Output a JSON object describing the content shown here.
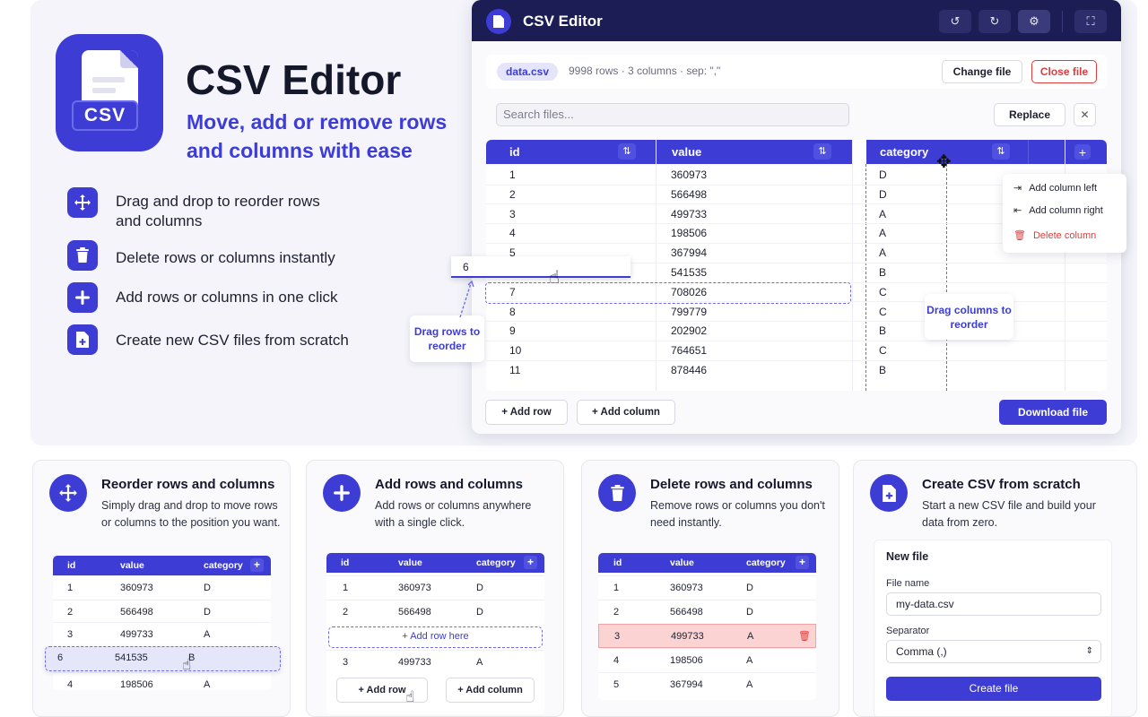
{
  "hero": {
    "app_icon_label": "CSV",
    "title": "CSV Editor",
    "subtitle": "Move, add or remove rows and columns with ease",
    "features": [
      {
        "icon": "move-icon",
        "text": "Drag and drop to reorder rows and columns"
      },
      {
        "icon": "trash-icon",
        "text": "Delete rows or columns instantly"
      },
      {
        "icon": "plus-icon",
        "text": "Add rows or columns in one click"
      },
      {
        "icon": "file-plus-icon",
        "text": "Create new CSV files from scratch"
      }
    ]
  },
  "window": {
    "title": "CSV Editor",
    "toolbar_icons": [
      "undo-icon",
      "redo-icon",
      "gear-icon",
      "fullscreen-icon"
    ],
    "file": {
      "name": "data.csv",
      "info": "9998 rows · 3 columns · sep: \",\"",
      "change_label": "Change file",
      "close_label": "Close file"
    },
    "search": {
      "placeholder": "Search files...",
      "replace_label": "Replace",
      "clear_icon": "close-icon"
    },
    "columns": [
      "id",
      "value",
      "category"
    ],
    "rows": [
      [
        "1",
        "360973",
        "D"
      ],
      [
        "2",
        "566498",
        "D"
      ],
      [
        "3",
        "499733",
        "A"
      ],
      [
        "4",
        "198506",
        "A"
      ],
      [
        "5",
        "367994",
        "A"
      ],
      [
        "",
        "541535",
        "B"
      ],
      [
        "7",
        "708026",
        "C"
      ],
      [
        "8",
        "799779",
        "C"
      ],
      [
        "9",
        "202902",
        "B"
      ],
      [
        "10",
        "764651",
        "C"
      ],
      [
        "11",
        "878446",
        "B"
      ]
    ],
    "dragged_row": "6",
    "context_menu": [
      "Add column left",
      "Add column right",
      "Delete column"
    ],
    "tip_rows": "Drag rows to reorder",
    "tip_columns": "Drag columns to reorder",
    "add_row_label": "+ Add row",
    "add_column_label": "+ Add column",
    "download_label": "Download file",
    "colors": {
      "accent": "#3d3dd6",
      "titlebar": "#1c1d55",
      "danger": "#e03b3b"
    }
  },
  "cards": [
    {
      "icon": "move-icon",
      "title": "Reorder rows and columns",
      "desc": "Simply drag and drop to move rows or columns to the position you want.",
      "columns": [
        "id",
        "value",
        "category"
      ],
      "rows": [
        [
          "1",
          "360973",
          "D"
        ],
        [
          "2",
          "566498",
          "D"
        ],
        [
          "3",
          "499733",
          "A"
        ],
        [
          "6",
          "541535",
          "B"
        ],
        [
          "4",
          "198506",
          "A"
        ]
      ]
    },
    {
      "icon": "plus-icon",
      "title": "Add rows and columns",
      "desc": "Add rows or columns anywhere with a single click.",
      "columns": [
        "id",
        "value",
        "category"
      ],
      "rows": [
        [
          "1",
          "360973",
          "D"
        ],
        [
          "2",
          "566498",
          "D"
        ],
        [
          "3",
          "499733",
          "A"
        ]
      ],
      "add_here": "+ Add row here",
      "add_row": "+ Add row",
      "add_col": "+ Add column"
    },
    {
      "icon": "trash-icon",
      "title": "Delete rows and columns",
      "desc": "Remove rows or columns you don't need instantly.",
      "columns": [
        "id",
        "value",
        "category"
      ],
      "rows": [
        [
          "1",
          "360973",
          "D"
        ],
        [
          "2",
          "566498",
          "D"
        ],
        [
          "3",
          "499733",
          "A"
        ],
        [
          "4",
          "198506",
          "A"
        ],
        [
          "5",
          "367994",
          "A"
        ]
      ]
    },
    {
      "icon": "file-plus-icon",
      "title": "Create CSV from scratch",
      "desc": "Start a new CSV file and build your data from zero.",
      "form_title": "New file",
      "file_name_label": "File name",
      "file_name_value": "my-data.csv",
      "separator_label": "Separator",
      "separator_value": "Comma (,)",
      "create_label": "Create file"
    }
  ]
}
